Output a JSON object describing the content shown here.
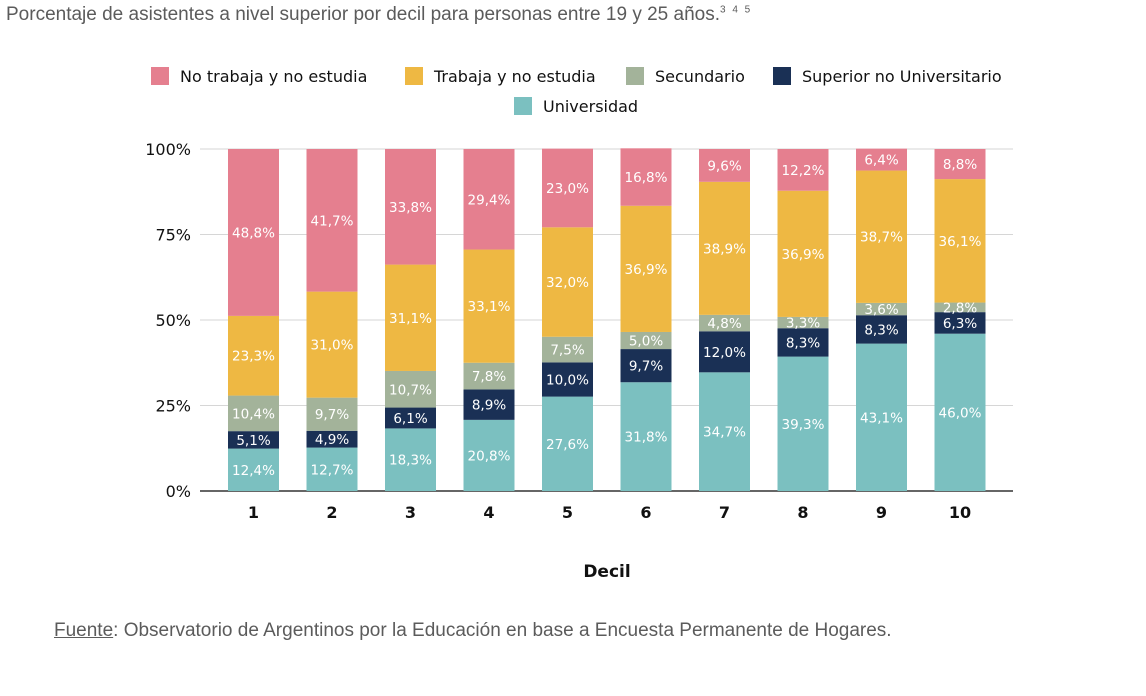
{
  "page": {
    "title": "Porcentaje de asistentes a nivel superior por decil para personas entre 19 y 25 años.",
    "title_refs": "3 4 5",
    "source_lead": "Fuente",
    "source_rest": ": Observatorio de Argentinos por la Educación en base a Encuesta Permanente de Hogares."
  },
  "chart_data": {
    "type": "bar",
    "stacked": true,
    "title": "",
    "xlabel": "Decil",
    "ylabel": "",
    "ylim": [
      0,
      100
    ],
    "yticks": [
      "0%",
      "25%",
      "50%",
      "75%",
      "100%"
    ],
    "grid": true,
    "legend_position": "top",
    "categories": [
      "1",
      "2",
      "3",
      "4",
      "5",
      "6",
      "7",
      "8",
      "9",
      "10"
    ],
    "series": [
      {
        "name": "Universidad",
        "color": "#7bc0c0",
        "label_color": "#ffffff",
        "values": [
          12.4,
          12.7,
          18.3,
          20.8,
          27.6,
          31.8,
          34.7,
          39.3,
          43.1,
          46.0
        ],
        "labels": [
          "12,4%",
          "12,7%",
          "18,3%",
          "20,8%",
          "27,6%",
          "31,8%",
          "34,7%",
          "39,3%",
          "43,1%",
          "46,0%"
        ]
      },
      {
        "name": "Superior no Universitario",
        "color": "#1a3055",
        "label_color": "#ffffff",
        "values": [
          5.1,
          4.9,
          6.1,
          8.9,
          10.0,
          9.7,
          12.0,
          8.3,
          8.3,
          6.3
        ],
        "labels": [
          "5,1%",
          "4,9%",
          "6,1%",
          "8,9%",
          "10,0%",
          "9,7%",
          "12,0%",
          "8,3%",
          "8,3%",
          "6,3%"
        ]
      },
      {
        "name": "Secundario",
        "color": "#a3b39a",
        "label_color": "#ffffff",
        "values": [
          10.4,
          9.7,
          10.7,
          7.8,
          7.5,
          5.0,
          4.8,
          3.3,
          3.6,
          2.8
        ],
        "labels": [
          "10,4%",
          "9,7%",
          "10,7%",
          "7,8%",
          "7,5%",
          "5,0%",
          "4,8%",
          "3,3%",
          "3,6%",
          "2,8%"
        ]
      },
      {
        "name": "Trabaja y no estudia",
        "color": "#eeb843",
        "label_color": "#ffffff",
        "values": [
          23.3,
          31.0,
          31.1,
          33.1,
          32.0,
          36.9,
          38.9,
          36.9,
          38.7,
          36.1
        ],
        "labels": [
          "23,3%",
          "31,0%",
          "31,1%",
          "33,1%",
          "32,0%",
          "36,9%",
          "38,9%",
          "36,9%",
          "38,7%",
          "36,1%"
        ]
      },
      {
        "name": "No trabaja y no estudia",
        "color": "#e57f8f",
        "label_color": "#ffffff",
        "values": [
          48.8,
          41.7,
          33.8,
          29.4,
          23.0,
          16.8,
          9.6,
          12.2,
          6.4,
          8.8
        ],
        "labels": [
          "48,8%",
          "41,7%",
          "33,8%",
          "29,4%",
          "23,0%",
          "16,8%",
          "9,6%",
          "12,2%",
          "6,4%",
          "8,8%"
        ]
      }
    ],
    "legend_order": [
      "No trabaja y no estudia",
      "Trabaja y no estudia",
      "Secundario",
      "Superior no Universitario",
      "Universidad"
    ]
  }
}
